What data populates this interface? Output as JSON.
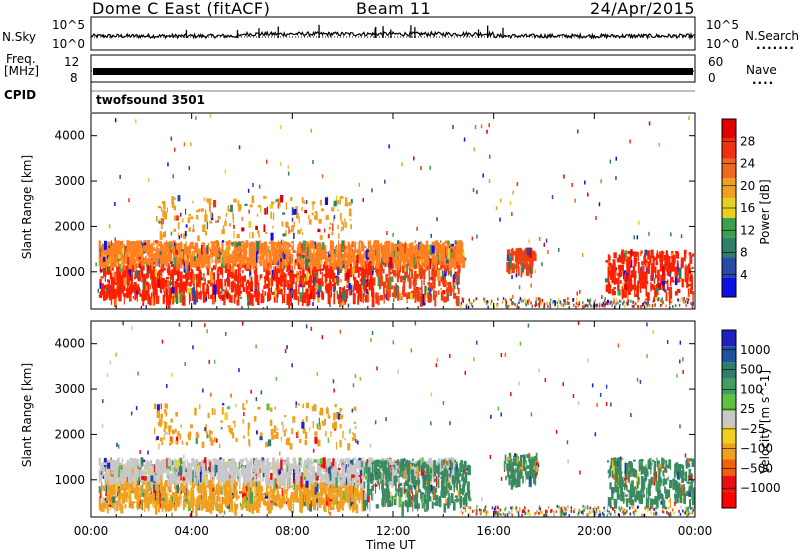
{
  "header": {
    "station": "Dome C East (fitACF)",
    "beam": "Beam 11",
    "date": "24/Apr/2015"
  },
  "top_panels": {
    "nsky_label": "N.Sky",
    "nsky_tick_top": "10^5",
    "nsky_tick_bottom": "10^0",
    "nsearch_label": "N.Search",
    "nsearch_tick_top": "10^5",
    "nsearch_tick_bottom": "10^0",
    "freq_label_1": "Freq.",
    "freq_label_2": "[MHz]",
    "freq_tick_top": "12",
    "freq_tick_bottom": "8",
    "nave_label": "Nave",
    "nave_tick_top": "60",
    "nave_tick_bottom": "0",
    "cpid_label": "CPID",
    "cpid_value": "twofsound 3501"
  },
  "chart_data": [
    {
      "type": "heatmap",
      "name": "Power panel",
      "ylabel": "Slant Range [km]",
      "y_ticks": [
        "1000",
        "2000",
        "3000",
        "4000"
      ],
      "y_tick_values": [
        1000,
        2000,
        3000,
        4000
      ],
      "ylim": [
        180,
        4500
      ],
      "x_tick_labels": [
        "00:00",
        "04:00",
        "08:00",
        "12:00",
        "16:00",
        "20:00",
        "00:00"
      ],
      "x_tick_hours": [
        0,
        4,
        8,
        12,
        16,
        20,
        24
      ],
      "xlim": [
        0,
        24
      ],
      "colorbar": {
        "label": "Power [dB]",
        "ticks": [
          "4",
          "8",
          "12",
          "16",
          "20",
          "24",
          "28"
        ],
        "colors": [
          "#1010e0",
          "#2a4aa8",
          "#2f7e6a",
          "#3ca050",
          "#e8d020",
          "#f0a020",
          "#f06820",
          "#f03010",
          "#e00000"
        ]
      },
      "regions": [
        {
          "t0": 0.3,
          "t1": 11.2,
          "r0": 450,
          "r1": 1250,
          "color": "#ff2000"
        },
        {
          "t0": 11.2,
          "t1": 14.6,
          "r0": 450,
          "r1": 1350,
          "color": "#f04010"
        },
        {
          "t0": 0.3,
          "t1": 14.8,
          "r0": 1250,
          "r1": 1700,
          "color": "#ff8020"
        },
        {
          "t0": 16.5,
          "t1": 17.6,
          "r0": 1100,
          "r1": 1550,
          "color": "#f04010"
        },
        {
          "t0": 20.4,
          "t1": 23.9,
          "r0": 550,
          "r1": 1500,
          "color": "#ff2000"
        },
        {
          "t0": 2.5,
          "t1": 10.5,
          "r0": 1800,
          "r1": 2700,
          "color": "#f0a020"
        }
      ]
    },
    {
      "type": "heatmap",
      "name": "Velocity panel",
      "ylabel": "Slant Range [km]",
      "y_ticks": [
        "1000",
        "2000",
        "3000",
        "4000"
      ],
      "y_tick_values": [
        1000,
        2000,
        3000,
        4000
      ],
      "ylim": [
        180,
        4500
      ],
      "x_tick_labels": [
        "00:00",
        "04:00",
        "08:00",
        "12:00",
        "16:00",
        "20:00",
        "00:00"
      ],
      "x_tick_hours": [
        0,
        4,
        8,
        12,
        16,
        20,
        24
      ],
      "xlim": [
        0,
        24
      ],
      "xlabel": "Time UT",
      "colorbar": {
        "label": "Velocity [m s^-1]",
        "ticks": [
          "1000",
          "500",
          "100",
          "25",
          "−25",
          "−100",
          "−500",
          "−1000"
        ],
        "colors": [
          "#2020c0",
          "#2050a0",
          "#2f7e6a",
          "#40a060",
          "#60c040",
          "#c8c8c8",
          "#f0d020",
          "#f0a020",
          "#f06010",
          "#e81010",
          "#ff0000"
        ]
      },
      "regions": [
        {
          "t0": 0.3,
          "t1": 10.8,
          "r0": 450,
          "r1": 1050,
          "color": "#f0a020"
        },
        {
          "t0": 0.3,
          "t1": 14.5,
          "r0": 1050,
          "r1": 1500,
          "color": "#c8c8c8"
        },
        {
          "t0": 10.8,
          "t1": 15.0,
          "r0": 450,
          "r1": 1450,
          "color": "#3a8a60"
        },
        {
          "t0": 16.4,
          "t1": 17.7,
          "r0": 1000,
          "r1": 1600,
          "color": "#3a8a60"
        },
        {
          "t0": 20.5,
          "t1": 23.9,
          "r0": 550,
          "r1": 1500,
          "color": "#3a8a60"
        },
        {
          "t0": 2.5,
          "t1": 10.5,
          "r0": 1800,
          "r1": 2700,
          "color": "#f0a020"
        }
      ]
    }
  ]
}
